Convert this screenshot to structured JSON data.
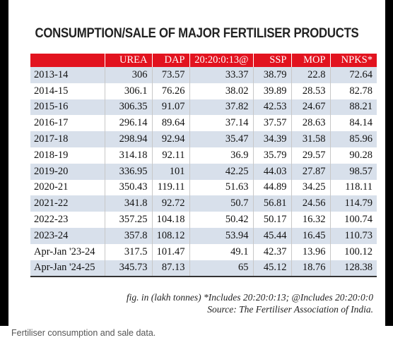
{
  "title": "CONSUMPTION/SALE OF MAJOR FERTILISER PRODUCTS",
  "table": {
    "columns": [
      "",
      "UREA",
      "DAP",
      "20:20:0:13@",
      "SSP",
      "MOP",
      "NPKS*"
    ],
    "rows": [
      [
        "2013-14",
        "306",
        "73.57",
        "33.37",
        "38.79",
        "22.8",
        "72.64"
      ],
      [
        "2014-15",
        "306.1",
        "76.26",
        "38.02",
        "39.89",
        "28.53",
        "82.78"
      ],
      [
        "2015-16",
        "306.35",
        "91.07",
        "37.82",
        "42.53",
        "24.67",
        "88.21"
      ],
      [
        "2016-17",
        "296.14",
        "89.64",
        "37.14",
        "37.57",
        "28.63",
        "84.14"
      ],
      [
        "2017-18",
        "298.94",
        "92.94",
        "35.47",
        "34.39",
        "31.58",
        "85.96"
      ],
      [
        "2018-19",
        "314.18",
        "92.11",
        "36.9",
        "35.79",
        "29.57",
        "90.28"
      ],
      [
        "2019-20",
        "336.95",
        "101",
        "42.25",
        "44.03",
        "27.87",
        "98.57"
      ],
      [
        "2020-21",
        "350.43",
        "119.11",
        "51.63",
        "44.89",
        "34.25",
        "118.11"
      ],
      [
        "2021-22",
        "341.8",
        "92.72",
        "50.7",
        "56.81",
        "24.56",
        "114.79"
      ],
      [
        "2022-23",
        "357.25",
        "104.18",
        "50.42",
        "50.17",
        "16.32",
        "100.74"
      ],
      [
        "2023-24",
        "357.8",
        "108.12",
        "53.94",
        "45.44",
        "16.45",
        "110.73"
      ],
      [
        "Apr-Jan '23-24",
        "317.5",
        "101.47",
        "49.1",
        "42.37",
        "13.96",
        "100.12"
      ],
      [
        "Apr-Jan '24-25",
        "345.73",
        "87.13",
        "65",
        "45.12",
        "18.76",
        "128.38"
      ]
    ]
  },
  "footnote": "fig. in (lakh tonnes) *Includes 20:20:0:13; @Includes 20:20:0:0",
  "source": "Source: The Fertiliser Association of India.",
  "caption": "Fertiliser consumption and sale data.",
  "colors": {
    "header_bg": "#e2131f",
    "stripe": "#d8e0eb"
  }
}
